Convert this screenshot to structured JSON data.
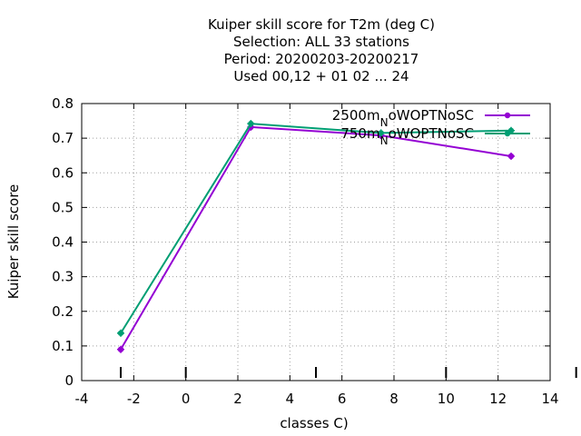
{
  "chart_data": {
    "type": "line",
    "title_lines": [
      "Kuiper skill score  for T2m (deg C)",
      "Selection: ALL     33 stations",
      "Period: 20200203-20200217",
      "Used  00,12  + 01 02 ... 24"
    ],
    "xlabel": "classes C)",
    "ylabel": "Kuiper skill score",
    "xlim": [
      -4,
      14
    ],
    "ylim": [
      0,
      0.8
    ],
    "xticks": [
      "-4",
      "-2",
      "0",
      "2",
      "4",
      "6",
      "8",
      "10",
      "12",
      "14"
    ],
    "yticks": [
      "0",
      "0.1",
      "0.2",
      "0.3",
      "0.4",
      "0.5",
      "0.6",
      "0.7",
      "0.8"
    ],
    "grid": true,
    "legend_position": "top-right",
    "class_markers": [
      -2.5,
      0,
      5,
      10,
      15
    ],
    "series": [
      {
        "name": "2500m_oWOPTNoSC",
        "legend_main": "2500m",
        "legend_sub": "N",
        "legend_tail": "oWOPTNoSC",
        "color": "#9400d3",
        "x": [
          -2.5,
          2.5,
          7.5,
          12.5
        ],
        "y": [
          0.09,
          0.732,
          0.708,
          0.648
        ]
      },
      {
        "name": "750m_oWOPTNoSC",
        "legend_main": "750m",
        "legend_sub": "N",
        "legend_tail": "oWOPTNoSC",
        "color": "#009e73",
        "x": [
          -2.5,
          2.5,
          7.5,
          12.5
        ],
        "y": [
          0.137,
          0.742,
          0.715,
          0.722
        ]
      }
    ]
  }
}
